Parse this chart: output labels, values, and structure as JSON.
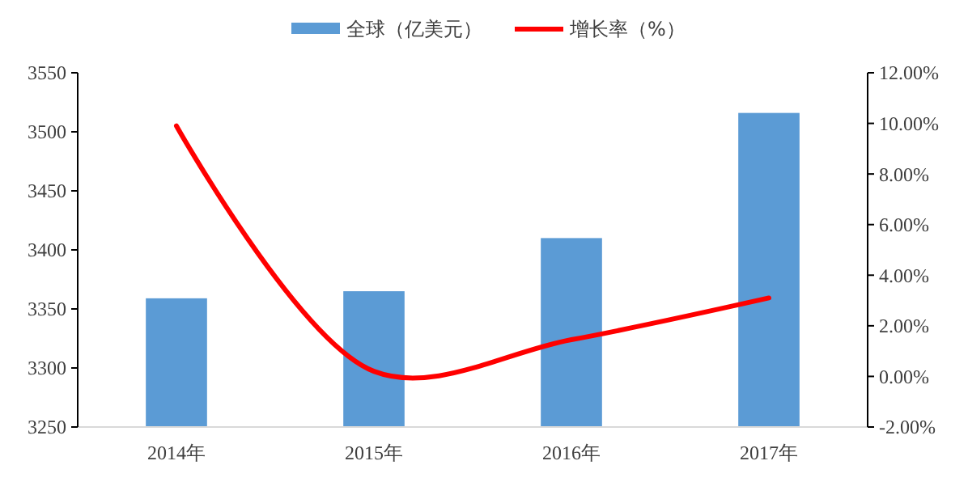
{
  "chart_data": {
    "type": "bar",
    "categories": [
      "2014年",
      "2015年",
      "2016年",
      "2017年"
    ],
    "series": [
      {
        "name": "全球（亿美元）",
        "color": "#5b9bd5",
        "values": [
          3359,
          3365,
          3410,
          3516
        ]
      },
      {
        "name": "增长率（%）",
        "type": "line",
        "axis": "y2",
        "color": "#ff0000",
        "values": [
          9.9,
          0.2,
          1.45,
          3.1
        ]
      }
    ],
    "ylim": [
      3250,
      3550
    ],
    "yticks": [
      3250,
      3300,
      3350,
      3400,
      3450,
      3500,
      3550
    ],
    "y2lim": [
      -2,
      12
    ],
    "y2ticks": [
      {
        "value": -2,
        "label": "-2.00%"
      },
      {
        "value": 0,
        "label": "0.00%"
      },
      {
        "value": 2,
        "label": "2.00%"
      },
      {
        "value": 4,
        "label": "4.00%"
      },
      {
        "value": 6,
        "label": "6.00%"
      },
      {
        "value": 8,
        "label": "8.00%"
      },
      {
        "value": 10,
        "label": "10.00%"
      },
      {
        "value": 12,
        "label": "12.00%"
      }
    ],
    "legend": "top",
    "grid": false,
    "marker": "none",
    "line_style": "solid"
  }
}
